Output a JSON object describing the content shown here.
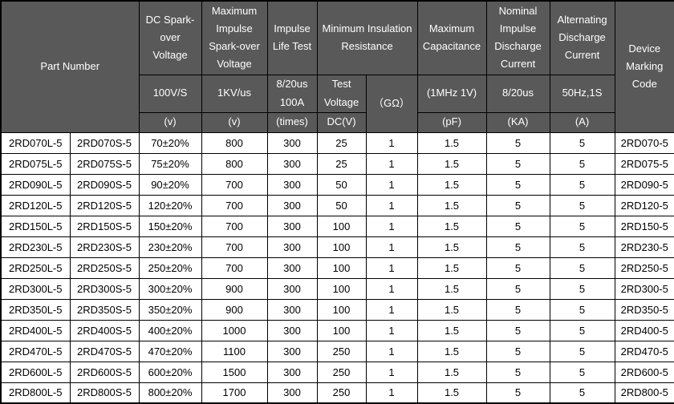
{
  "colors": {
    "header_bg": "#595959",
    "header_text": "#ffffff",
    "body_bg": "#ffffff",
    "body_text": "#000000",
    "border": "#000000"
  },
  "table": {
    "header": {
      "part_number": "Part Number",
      "device_marking": "Device Marking Code",
      "groups": [
        {
          "title": "DC Spark-over Voltage",
          "condition": "100V/S",
          "unit": "(v)"
        },
        {
          "title": "Maximum Impulse Spark-over Voltage",
          "condition": "1KV/us",
          "unit": "(v)"
        },
        {
          "title": "Impulse Life Test",
          "condition": "8/20us\n100A",
          "unit": "(times)"
        },
        {
          "title": "Minimum Insulation Resistance",
          "condition": "Test Voltage",
          "unit": "DC(V)",
          "condition2": "（GΩ）"
        },
        {
          "title": "Maximum Capacitance",
          "condition": "(1MHz 1V)",
          "unit": "(pF)"
        },
        {
          "title": "Nominal Impulse Discharge Current",
          "condition": "8/20us",
          "unit": "(KA)"
        },
        {
          "title": "Alternating Discharge Current",
          "condition": "50Hz,1S",
          "unit": "(A)"
        }
      ]
    },
    "rows": [
      [
        "2RD070L-5",
        "2RD070S-5",
        "70±20%",
        "800",
        "300",
        "25",
        "1",
        "1.5",
        "5",
        "5",
        "2RD070-5"
      ],
      [
        "2RD075L-5",
        "2RD075S-5",
        "75±20%",
        "800",
        "300",
        "25",
        "1",
        "1.5",
        "5",
        "5",
        "2RD075-5"
      ],
      [
        "2RD090L-5",
        "2RD090S-5",
        "90±20%",
        "700",
        "300",
        "50",
        "1",
        "1.5",
        "5",
        "5",
        "2RD090-5"
      ],
      [
        "2RD120L-5",
        "2RD120S-5",
        "120±20%",
        "700",
        "300",
        "50",
        "1",
        "1.5",
        "5",
        "5",
        "2RD120-5"
      ],
      [
        "2RD150L-5",
        "2RD150S-5",
        "150±20%",
        "700",
        "300",
        "100",
        "1",
        "1.5",
        "5",
        "5",
        "2RD150-5"
      ],
      [
        "2RD230L-5",
        "2RD230S-5",
        "230±20%",
        "700",
        "300",
        "100",
        "1",
        "1.5",
        "5",
        "5",
        "2RD230-5"
      ],
      [
        "2RD250L-5",
        "2RD250S-5",
        "250±20%",
        "700",
        "300",
        "100",
        "1",
        "1.5",
        "5",
        "5",
        "2RD250-5"
      ],
      [
        "2RD300L-5",
        "2RD300S-5",
        "300±20%",
        "900",
        "300",
        "100",
        "1",
        "1.5",
        "5",
        "5",
        "2RD300-5"
      ],
      [
        "2RD350L-5",
        "2RD350S-5",
        "350±20%",
        "900",
        "300",
        "100",
        "1",
        "1.5",
        "5",
        "5",
        "2RD350-5"
      ],
      [
        "2RD400L-5",
        "2RD400S-5",
        "400±20%",
        "1000",
        "300",
        "100",
        "1",
        "1.5",
        "5",
        "5",
        "2RD400-5"
      ],
      [
        "2RD470L-5",
        "2RD470S-5",
        "470±20%",
        "1100",
        "300",
        "250",
        "1",
        "1.5",
        "5",
        "5",
        "2RD470-5"
      ],
      [
        "2RD600L-5",
        "2RD600S-5",
        "600±20%",
        "1500",
        "300",
        "250",
        "1",
        "1.5",
        "5",
        "5",
        "2RD600-5"
      ],
      [
        "2RD800L-5",
        "2RD800S-5",
        "800±20%",
        "1700",
        "300",
        "250",
        "1",
        "1.5",
        "5",
        "5",
        "2RD800-5"
      ]
    ]
  }
}
